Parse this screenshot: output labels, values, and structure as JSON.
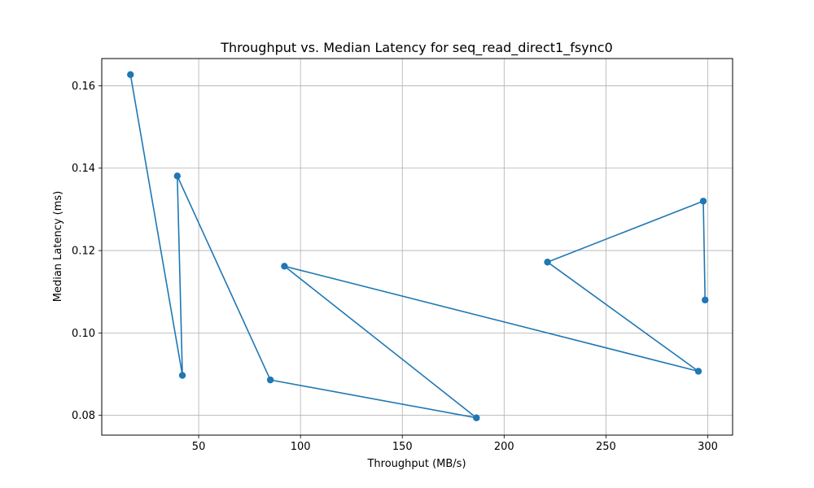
{
  "chart_data": {
    "type": "line",
    "title": "Throughput vs. Median Latency for seq_read_direct1_fsync0",
    "xlabel": "Throughput (MB/s)",
    "ylabel": "Median Latency (ms)",
    "xlim": [
      2.4,
      312.2
    ],
    "ylim": [
      0.0752,
      0.1666
    ],
    "xticks": [
      50,
      100,
      150,
      200,
      250,
      300
    ],
    "yticks": [
      0.08,
      0.1,
      0.12,
      0.14,
      0.16
    ],
    "xtick_labels": [
      "50",
      "100",
      "150",
      "200",
      "250",
      "300"
    ],
    "ytick_labels": [
      "0.08",
      "0.10",
      "0.12",
      "0.14",
      "0.16"
    ],
    "grid": true,
    "series": [
      {
        "color": "#1f77b4",
        "marker": "circle",
        "x": [
          16.5,
          42.0,
          39.5,
          85.2,
          186.4,
          92.1,
          295.4,
          221.3,
          297.8,
          298.7
        ],
        "y": [
          0.1627,
          0.0897,
          0.1381,
          0.0886,
          0.0794,
          0.1162,
          0.0907,
          0.1172,
          0.132,
          0.108
        ]
      }
    ]
  }
}
